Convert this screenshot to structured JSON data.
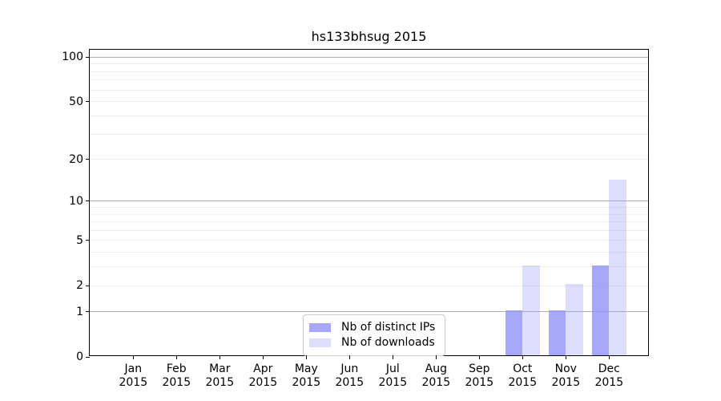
{
  "chart_data": {
    "type": "bar",
    "title": "hs133bhsug 2015",
    "x_axis": {
      "categories": [
        "Jan",
        "Feb",
        "Mar",
        "Apr",
        "May",
        "Jun",
        "Jul",
        "Aug",
        "Sep",
        "Oct",
        "Nov",
        "Dec"
      ],
      "year": "2015"
    },
    "y_axis": {
      "scale": "log10(1+value)",
      "ticks": [
        0,
        1,
        2,
        5,
        10,
        20,
        50,
        100
      ],
      "max": 112.4,
      "major_gridlines": [
        1,
        10,
        100
      ],
      "minor_gridlines": [
        2,
        3,
        4,
        5,
        6,
        7,
        8,
        9,
        20,
        30,
        40,
        50,
        60,
        70,
        80,
        90
      ]
    },
    "series": [
      {
        "name": "Nb of distinct IPs",
        "color": "rgba(148,148,246,0.82)",
        "values": [
          0,
          0,
          0,
          0,
          0,
          0,
          0,
          0,
          0,
          1,
          1,
          3
        ]
      },
      {
        "name": "Nb of downloads",
        "color": "rgba(148,148,246,0.32)",
        "values": [
          0,
          0,
          0,
          0,
          0,
          0,
          0,
          0,
          0,
          3,
          2,
          14
        ]
      }
    ],
    "legend": {
      "position": "lower center",
      "entries": [
        "Nb of distinct IPs",
        "Nb of downloads"
      ]
    },
    "colors": {
      "major_grid": "#b0b0b0",
      "minor_grid": "#ededed",
      "axis": "#000000",
      "bar_base": "#9494f6"
    },
    "grid": true
  }
}
